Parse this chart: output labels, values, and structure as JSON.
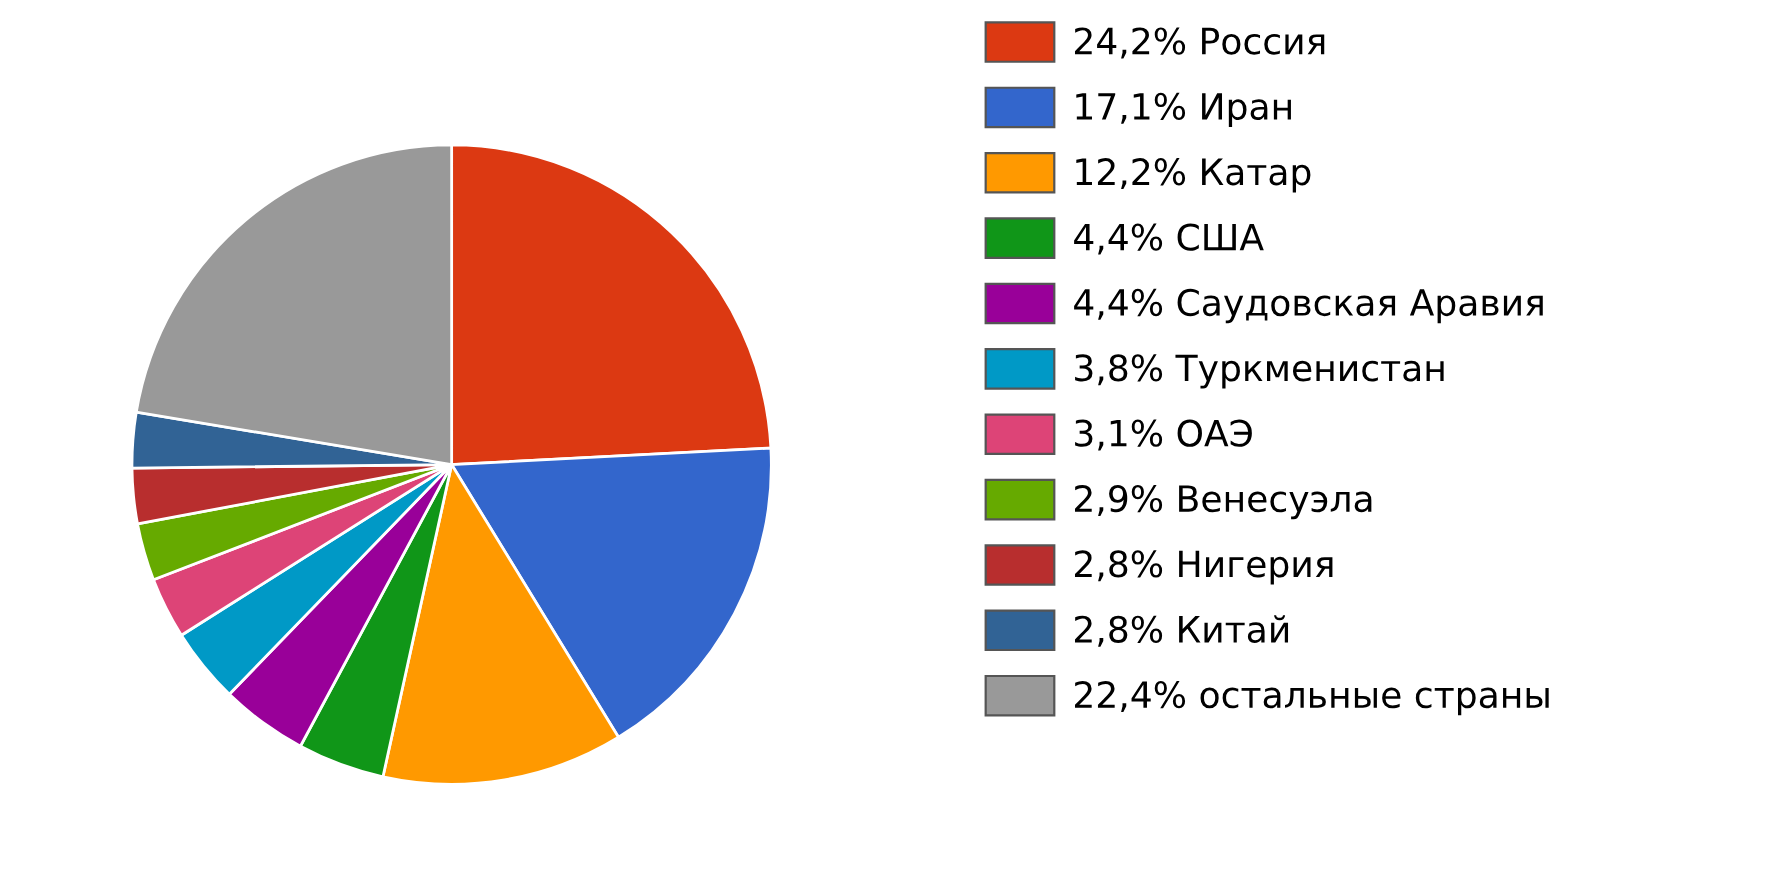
{
  "chart_data": {
    "type": "pie",
    "categories": [
      "Россия",
      "Иран",
      "Катар",
      "США",
      "Саудовская Аравия",
      "Туркменистан",
      "ОАЭ",
      "Венесуэла",
      "Нигерия",
      "Китай",
      "остальные страны"
    ],
    "values": [
      24.2,
      17.1,
      12.2,
      4.4,
      4.4,
      3.8,
      3.1,
      2.9,
      2.8,
      2.8,
      22.4
    ],
    "value_labels": [
      "24,2%",
      "17,1%",
      "12,2%",
      "4,4%",
      "4,4%",
      "3,8%",
      "3,1%",
      "2,9%",
      "2,8%",
      "2,8%",
      "22,4%"
    ],
    "colors": [
      "#dc3912",
      "#3366cc",
      "#ff9900",
      "#109618",
      "#990099",
      "#0099c6",
      "#dd4477",
      "#66aa00",
      "#b82e2e",
      "#316395",
      "#999999"
    ],
    "legend": "right"
  }
}
